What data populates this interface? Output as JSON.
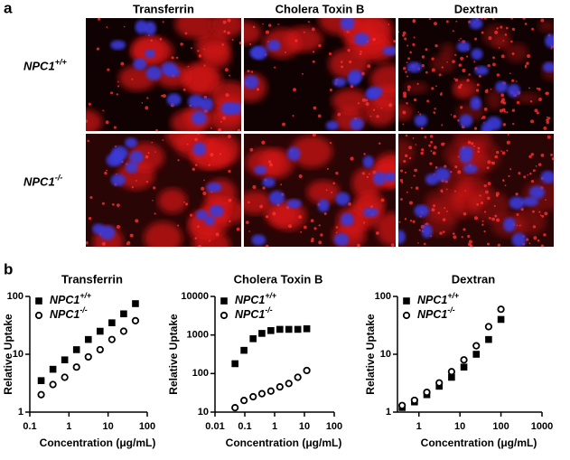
{
  "panel_a": {
    "label": "a",
    "columns": [
      "Transferrin",
      "Cholera Toxin B",
      "Dextran"
    ],
    "rows": [
      "NPC1+/+",
      "NPC1-/-"
    ]
  },
  "panel_b": {
    "label": "b"
  },
  "chart_data": [
    {
      "type": "scatter",
      "title": "Transferrin",
      "xlabel": "Concentration (μg/mL)",
      "ylabel": "Relative Uptake",
      "log_x": true,
      "log_y": true,
      "x": [
        0.195,
        0.39,
        0.78,
        1.56,
        3.125,
        6.25,
        12.5,
        25,
        50
      ],
      "series": [
        {
          "name": "NPC1+/+",
          "color": "#000000",
          "marker": "filled-square",
          "values": [
            3.5,
            5.5,
            8,
            12,
            18,
            25,
            35,
            50,
            75
          ]
        },
        {
          "name": "NPC1-/-",
          "color": "#000000",
          "marker": "open-circle",
          "values": [
            2,
            3,
            4,
            6,
            9,
            12,
            18,
            25,
            38
          ]
        }
      ],
      "xlim": [
        0.1,
        100
      ],
      "xticks": [
        0.1,
        1,
        10,
        100
      ],
      "ylim": [
        1,
        100
      ],
      "yticks": [
        1,
        10,
        100
      ]
    },
    {
      "type": "scatter",
      "title": "Cholera Toxin B",
      "xlabel": "Concentration (μg/mL)",
      "ylabel": "Relative Uptake",
      "log_x": true,
      "log_y": true,
      "x": [
        0.047,
        0.094,
        0.19,
        0.375,
        0.75,
        1.5,
        3,
        6,
        12
      ],
      "series": [
        {
          "name": "NPC1+/+",
          "color": "#000000",
          "marker": "filled-square",
          "values": [
            180,
            400,
            800,
            1100,
            1300,
            1400,
            1400,
            1400,
            1450
          ]
        },
        {
          "name": "NPC1-/-",
          "color": "#000000",
          "marker": "open-circle",
          "values": [
            13,
            20,
            25,
            30,
            35,
            45,
            55,
            80,
            120
          ]
        }
      ],
      "xlim": [
        0.01,
        100
      ],
      "xticks": [
        0.01,
        0.1,
        1,
        10,
        100
      ],
      "ylim": [
        10,
        10000
      ],
      "yticks": [
        10,
        100,
        1000,
        10000
      ]
    },
    {
      "type": "scatter",
      "title": "Dextran",
      "xlabel": "Concentration (μg/mL)",
      "ylabel": "Relative Uptake",
      "log_x": true,
      "log_y": true,
      "x": [
        0.39,
        0.78,
        1.56,
        3.125,
        6.25,
        12.5,
        25,
        50,
        100
      ],
      "series": [
        {
          "name": "NPC1+/+",
          "color": "#000000",
          "marker": "filled-square",
          "values": [
            1.2,
            1.5,
            2,
            2.8,
            4,
            6,
            10,
            18,
            40
          ]
        },
        {
          "name": "NPC1-/-",
          "color": "#000000",
          "marker": "open-circle",
          "values": [
            1.3,
            1.6,
            2.2,
            3.2,
            5,
            8,
            14,
            30,
            60
          ]
        }
      ],
      "xlim": [
        0.3,
        1000
      ],
      "xticks": [
        1,
        10,
        100,
        1000
      ],
      "ylim": [
        1,
        100
      ],
      "yticks": [
        1,
        10,
        100
      ]
    }
  ]
}
